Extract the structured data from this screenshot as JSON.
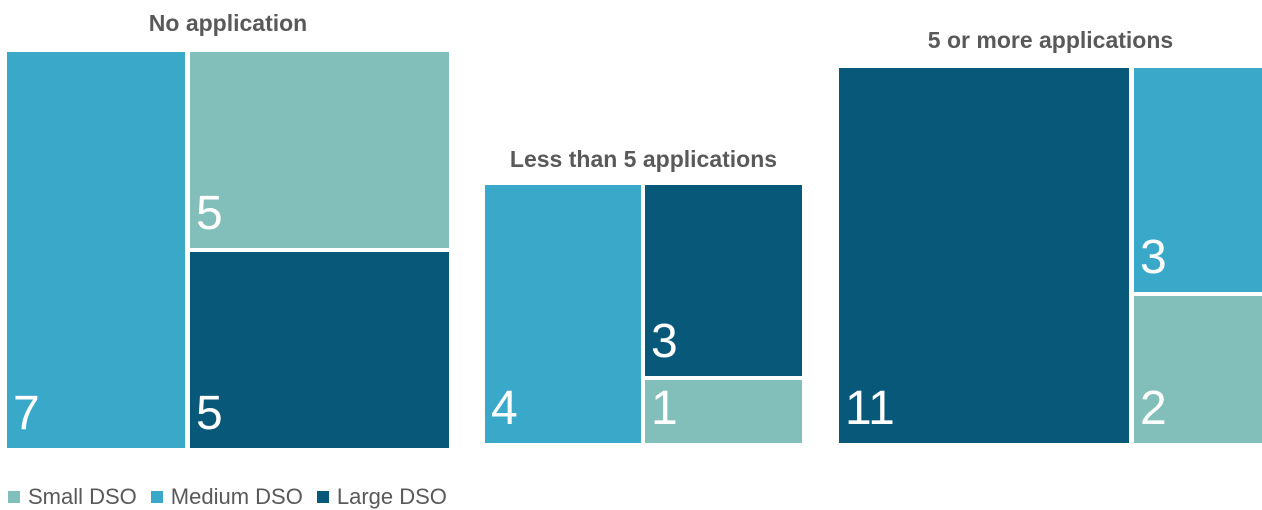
{
  "chart_data": {
    "type": "treemap",
    "legend": {
      "placement": "bottom-left",
      "items": [
        {
          "label": "Small DSO",
          "color": "#83BFBA"
        },
        {
          "label": "Medium DSO",
          "color": "#3AA8C8"
        },
        {
          "label": "Large DSO",
          "color": "#08587A"
        }
      ]
    },
    "groups": [
      {
        "title": "No application",
        "tiles": [
          {
            "category": "Medium DSO",
            "value": 7
          },
          {
            "category": "Small DSO",
            "value": 5
          },
          {
            "category": "Large DSO",
            "value": 5
          }
        ]
      },
      {
        "title": "Less than 5 applications",
        "tiles": [
          {
            "category": "Medium DSO",
            "value": 4
          },
          {
            "category": "Large DSO",
            "value": 3
          },
          {
            "category": "Small DSO",
            "value": 1
          }
        ]
      },
      {
        "title": "5 or more applications",
        "tiles": [
          {
            "category": "Large DSO",
            "value": 11
          },
          {
            "category": "Medium DSO",
            "value": 3
          },
          {
            "category": "Small DSO",
            "value": 2
          }
        ]
      }
    ]
  }
}
